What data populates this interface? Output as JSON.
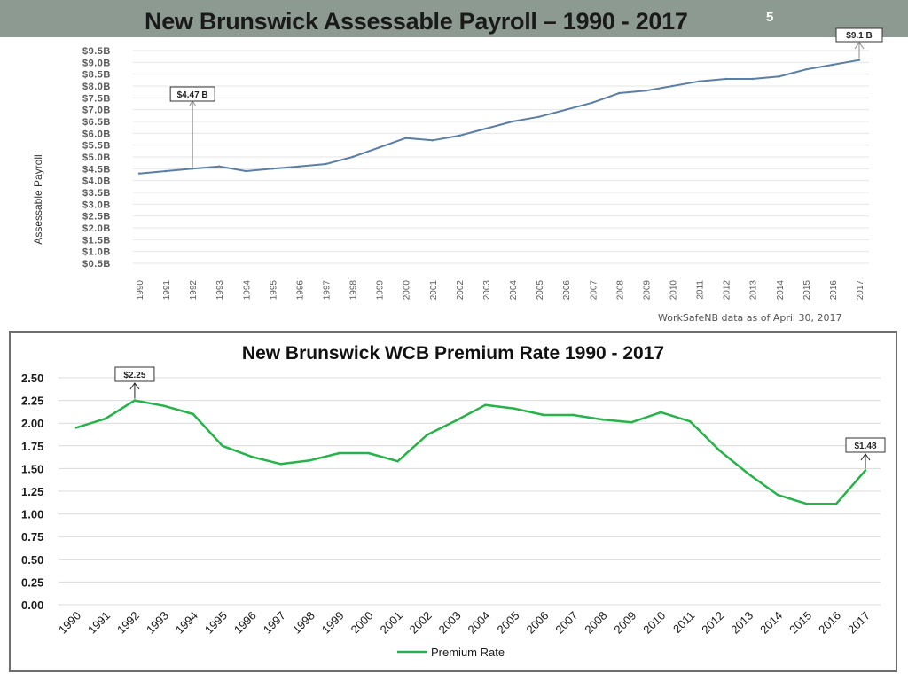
{
  "slide": {
    "title": "New Brunswick Assessable Payroll – 1990 - 2017",
    "page_number": "5",
    "header_color": "#8c9a92"
  },
  "source_note": "WorkSafeNB data as of April 30, 2017",
  "chart_data": [
    {
      "type": "line",
      "title": "",
      "xlabel": "",
      "ylabel": "Assessable Payroll",
      "x": [
        "1990",
        "1991",
        "1992",
        "1993",
        "1994",
        "1995",
        "1996",
        "1997",
        "1998",
        "1999",
        "2000",
        "2001",
        "2002",
        "2003",
        "2004",
        "2005",
        "2006",
        "2007",
        "2008",
        "2009",
        "2010",
        "2011",
        "2012",
        "2013",
        "2014",
        "2015",
        "2016",
        "2017"
      ],
      "series": [
        {
          "values": [
            4.3,
            4.4,
            4.5,
            4.6,
            4.4,
            4.5,
            4.6,
            4.7,
            5.0,
            5.4,
            5.8,
            5.7,
            5.9,
            6.2,
            6.5,
            6.7,
            7.0,
            7.3,
            7.7,
            7.8,
            8.0,
            8.2,
            8.3,
            8.3,
            8.4,
            8.7,
            8.9,
            9.1
          ],
          "color": "#5b7fa4"
        }
      ],
      "ylim": [
        0,
        9.5
      ],
      "yticks": [
        0.5,
        1.0,
        1.5,
        2.0,
        2.5,
        3.0,
        3.5,
        4.0,
        4.5,
        5.0,
        5.5,
        6.0,
        6.5,
        7.0,
        7.5,
        8.0,
        8.5,
        9.0,
        9.5
      ],
      "ytick_labels": [
        "$0.5B",
        "$1.0B",
        "$1.5B",
        "$2.0B",
        "$2.5B",
        "$3.0B",
        "$3.5B",
        "$4.0B",
        "$4.5B",
        "$5.0B",
        "$5.5B",
        "$6.0B",
        "$6.5B",
        "$7.0B",
        "$7.5B",
        "$8.0B",
        "$8.5B",
        "$9.0B",
        "$9.5B"
      ],
      "grid": true,
      "annotations": [
        {
          "x": "1992",
          "label": "$4.47 B"
        },
        {
          "x": "2017",
          "label": "$9.1 B"
        }
      ]
    },
    {
      "type": "line",
      "title": "New Brunswick WCB Premium Rate 1990 - 2017",
      "xlabel": "",
      "ylabel": "",
      "x": [
        "1990",
        "1991",
        "1992",
        "1993",
        "1994",
        "1995",
        "1996",
        "1997",
        "1998",
        "1999",
        "2000",
        "2001",
        "2002",
        "2003",
        "2004",
        "2005",
        "2006",
        "2007",
        "2008",
        "2009",
        "2010",
        "2011",
        "2012",
        "2013",
        "2014",
        "2015",
        "2016",
        "2017"
      ],
      "series": [
        {
          "name": "Premium Rate",
          "values": [
            1.95,
            2.05,
            2.25,
            2.19,
            2.1,
            1.75,
            1.63,
            1.55,
            1.59,
            1.67,
            1.67,
            1.58,
            1.87,
            2.03,
            2.2,
            2.16,
            2.09,
            2.09,
            2.04,
            2.01,
            2.12,
            2.02,
            1.7,
            1.44,
            1.21,
            1.11,
            1.11,
            1.48
          ],
          "color": "#27b24a"
        }
      ],
      "ylim": [
        0,
        2.5
      ],
      "yticks": [
        0,
        0.25,
        0.5,
        0.75,
        1.0,
        1.25,
        1.5,
        1.75,
        2.0,
        2.25,
        2.5
      ],
      "ytick_labels": [
        "0.00",
        "0.25",
        "0.50",
        "0.75",
        "1.00",
        "1.25",
        "1.50",
        "1.75",
        "2.00",
        "2.25",
        "2.50"
      ],
      "grid": true,
      "legend": "bottom",
      "annotations": [
        {
          "x": "1992",
          "label": "$2.25"
        },
        {
          "x": "2017",
          "label": "$1.48"
        }
      ]
    }
  ]
}
